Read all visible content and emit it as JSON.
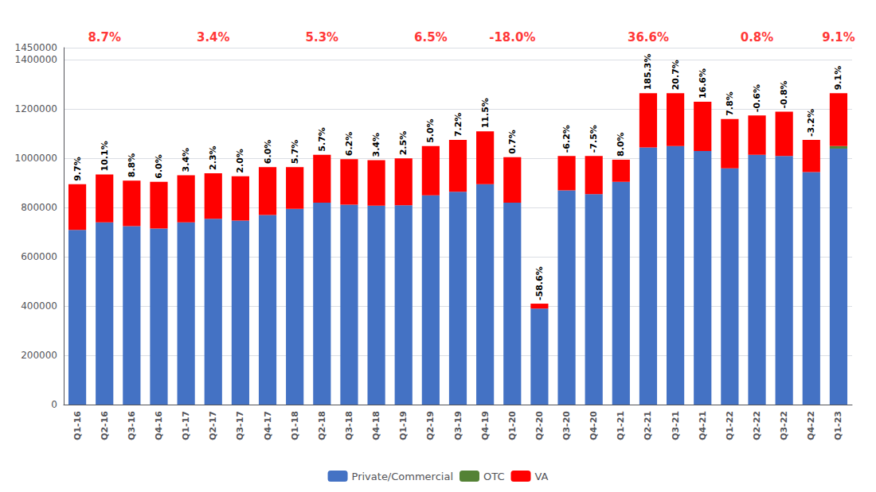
{
  "chart_data": {
    "type": "bar",
    "stacked": true,
    "categories": [
      "Q1-16",
      "Q2-16",
      "Q3-16",
      "Q4-16",
      "Q1-17",
      "Q2-17",
      "Q3-17",
      "Q4-17",
      "Q1-18",
      "Q2-18",
      "Q3-18",
      "Q4-18",
      "Q1-19",
      "Q2-19",
      "Q3-19",
      "Q4-19",
      "Q1-20",
      "Q2-20",
      "Q3-20",
      "Q4-20",
      "Q1-21",
      "Q2-21",
      "Q3-21",
      "Q4-21",
      "Q1-22",
      "Q2-22",
      "Q3-22",
      "Q4-22",
      "Q1-23"
    ],
    "series": [
      {
        "name": "Private/Commercial",
        "color": "#4472C4",
        "values": [
          710000,
          740000,
          725000,
          715000,
          740000,
          755000,
          748000,
          770000,
          795000,
          820000,
          812000,
          808000,
          810000,
          850000,
          865000,
          895000,
          820000,
          390000,
          870000,
          855000,
          905000,
          1045000,
          1050000,
          1030000,
          960000,
          1015000,
          1010000,
          945000,
          1040000
        ]
      },
      {
        "name": "OTC",
        "color": "#548235",
        "values": [
          0,
          0,
          0,
          0,
          0,
          0,
          0,
          0,
          0,
          0,
          0,
          0,
          0,
          0,
          0,
          0,
          0,
          0,
          0,
          0,
          0,
          0,
          0,
          0,
          0,
          0,
          0,
          0,
          10000
        ]
      },
      {
        "name": "VA",
        "color": "#FF0000",
        "values": [
          185000,
          195000,
          185000,
          190000,
          192000,
          185000,
          180000,
          195000,
          170000,
          195000,
          185000,
          185000,
          190000,
          200000,
          210000,
          215000,
          185000,
          20000,
          140000,
          155000,
          90000,
          220000,
          215000,
          200000,
          200000,
          160000,
          180000,
          130000,
          215000
        ]
      }
    ],
    "bar_labels": [
      "9.7%",
      "10.1%",
      "8.8%",
      "6.0%",
      "3.4%",
      "2.3%",
      "2.0%",
      "6.0%",
      "5.7%",
      "5.7%",
      "6.2%",
      "3.4%",
      "2.5%",
      "5.0%",
      "7.2%",
      "11.5%",
      "0.7%",
      "-58.6%",
      "-6.2%",
      "-7.5%",
      "8.0%",
      "185.3%",
      "20.7%",
      "16.6%",
      "7.8%",
      "-0.6%",
      "-0.8%",
      "-3.2%",
      "9.1%"
    ],
    "annotations": [
      {
        "text": "8.7%",
        "x": "Q2-16",
        "color": "red"
      },
      {
        "text": "3.4%",
        "x": "Q2-17",
        "color": "red"
      },
      {
        "text": "5.3%",
        "x": "Q2-18",
        "color": "red"
      },
      {
        "text": "6.5%",
        "x": "Q2-19",
        "color": "red"
      },
      {
        "text": "-18.0%",
        "x": "Q1-20",
        "color": "red"
      },
      {
        "text": "36.6%",
        "x": "Q2-21",
        "color": "red"
      },
      {
        "text": "0.8%",
        "x": "Q2-22",
        "color": "red"
      },
      {
        "text": "9.1%",
        "x": "Q1-23",
        "color": "red"
      }
    ],
    "ylim": [
      0,
      1450000
    ],
    "yticks": [
      0,
      200000,
      400000,
      600000,
      800000,
      1000000,
      1200000,
      1400000
    ],
    "grid": true,
    "legend": "bottom"
  }
}
